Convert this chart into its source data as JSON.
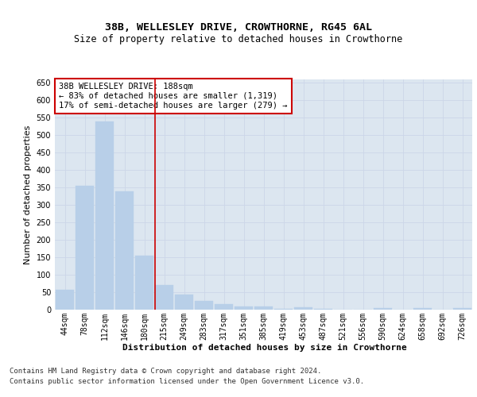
{
  "title": "38B, WELLESLEY DRIVE, CROWTHORNE, RG45 6AL",
  "subtitle": "Size of property relative to detached houses in Crowthorne",
  "xlabel_bottom": "Distribution of detached houses by size in Crowthorne",
  "ylabel": "Number of detached properties",
  "bar_labels": [
    "44sqm",
    "78sqm",
    "112sqm",
    "146sqm",
    "180sqm",
    "215sqm",
    "249sqm",
    "283sqm",
    "317sqm",
    "351sqm",
    "385sqm",
    "419sqm",
    "453sqm",
    "487sqm",
    "521sqm",
    "556sqm",
    "590sqm",
    "624sqm",
    "658sqm",
    "692sqm",
    "726sqm"
  ],
  "bar_values": [
    58,
    355,
    540,
    338,
    155,
    70,
    43,
    25,
    17,
    8,
    8,
    2,
    7,
    2,
    1,
    0,
    5,
    0,
    5,
    0,
    5
  ],
  "bar_color": "#b8cfe8",
  "bar_edge_color": "#b8cfe8",
  "grid_color": "#ccd6e8",
  "background_color": "#dce6f0",
  "vline_x": 4.52,
  "vline_color": "#cc0000",
  "annotation_text": "38B WELLESLEY DRIVE: 188sqm\n← 83% of detached houses are smaller (1,319)\n17% of semi-detached houses are larger (279) →",
  "annotation_box_color": "#ffffff",
  "annotation_box_edge": "#cc0000",
  "ylim": [
    0,
    660
  ],
  "yticks": [
    0,
    50,
    100,
    150,
    200,
    250,
    300,
    350,
    400,
    450,
    500,
    550,
    600,
    650
  ],
  "footer_line1": "Contains HM Land Registry data © Crown copyright and database right 2024.",
  "footer_line2": "Contains public sector information licensed under the Open Government Licence v3.0.",
  "title_fontsize": 9.5,
  "subtitle_fontsize": 8.5,
  "ylabel_fontsize": 8,
  "xlabel_bottom_fontsize": 8,
  "tick_fontsize": 7,
  "annotation_fontsize": 7.5,
  "footer_fontsize": 6.5
}
